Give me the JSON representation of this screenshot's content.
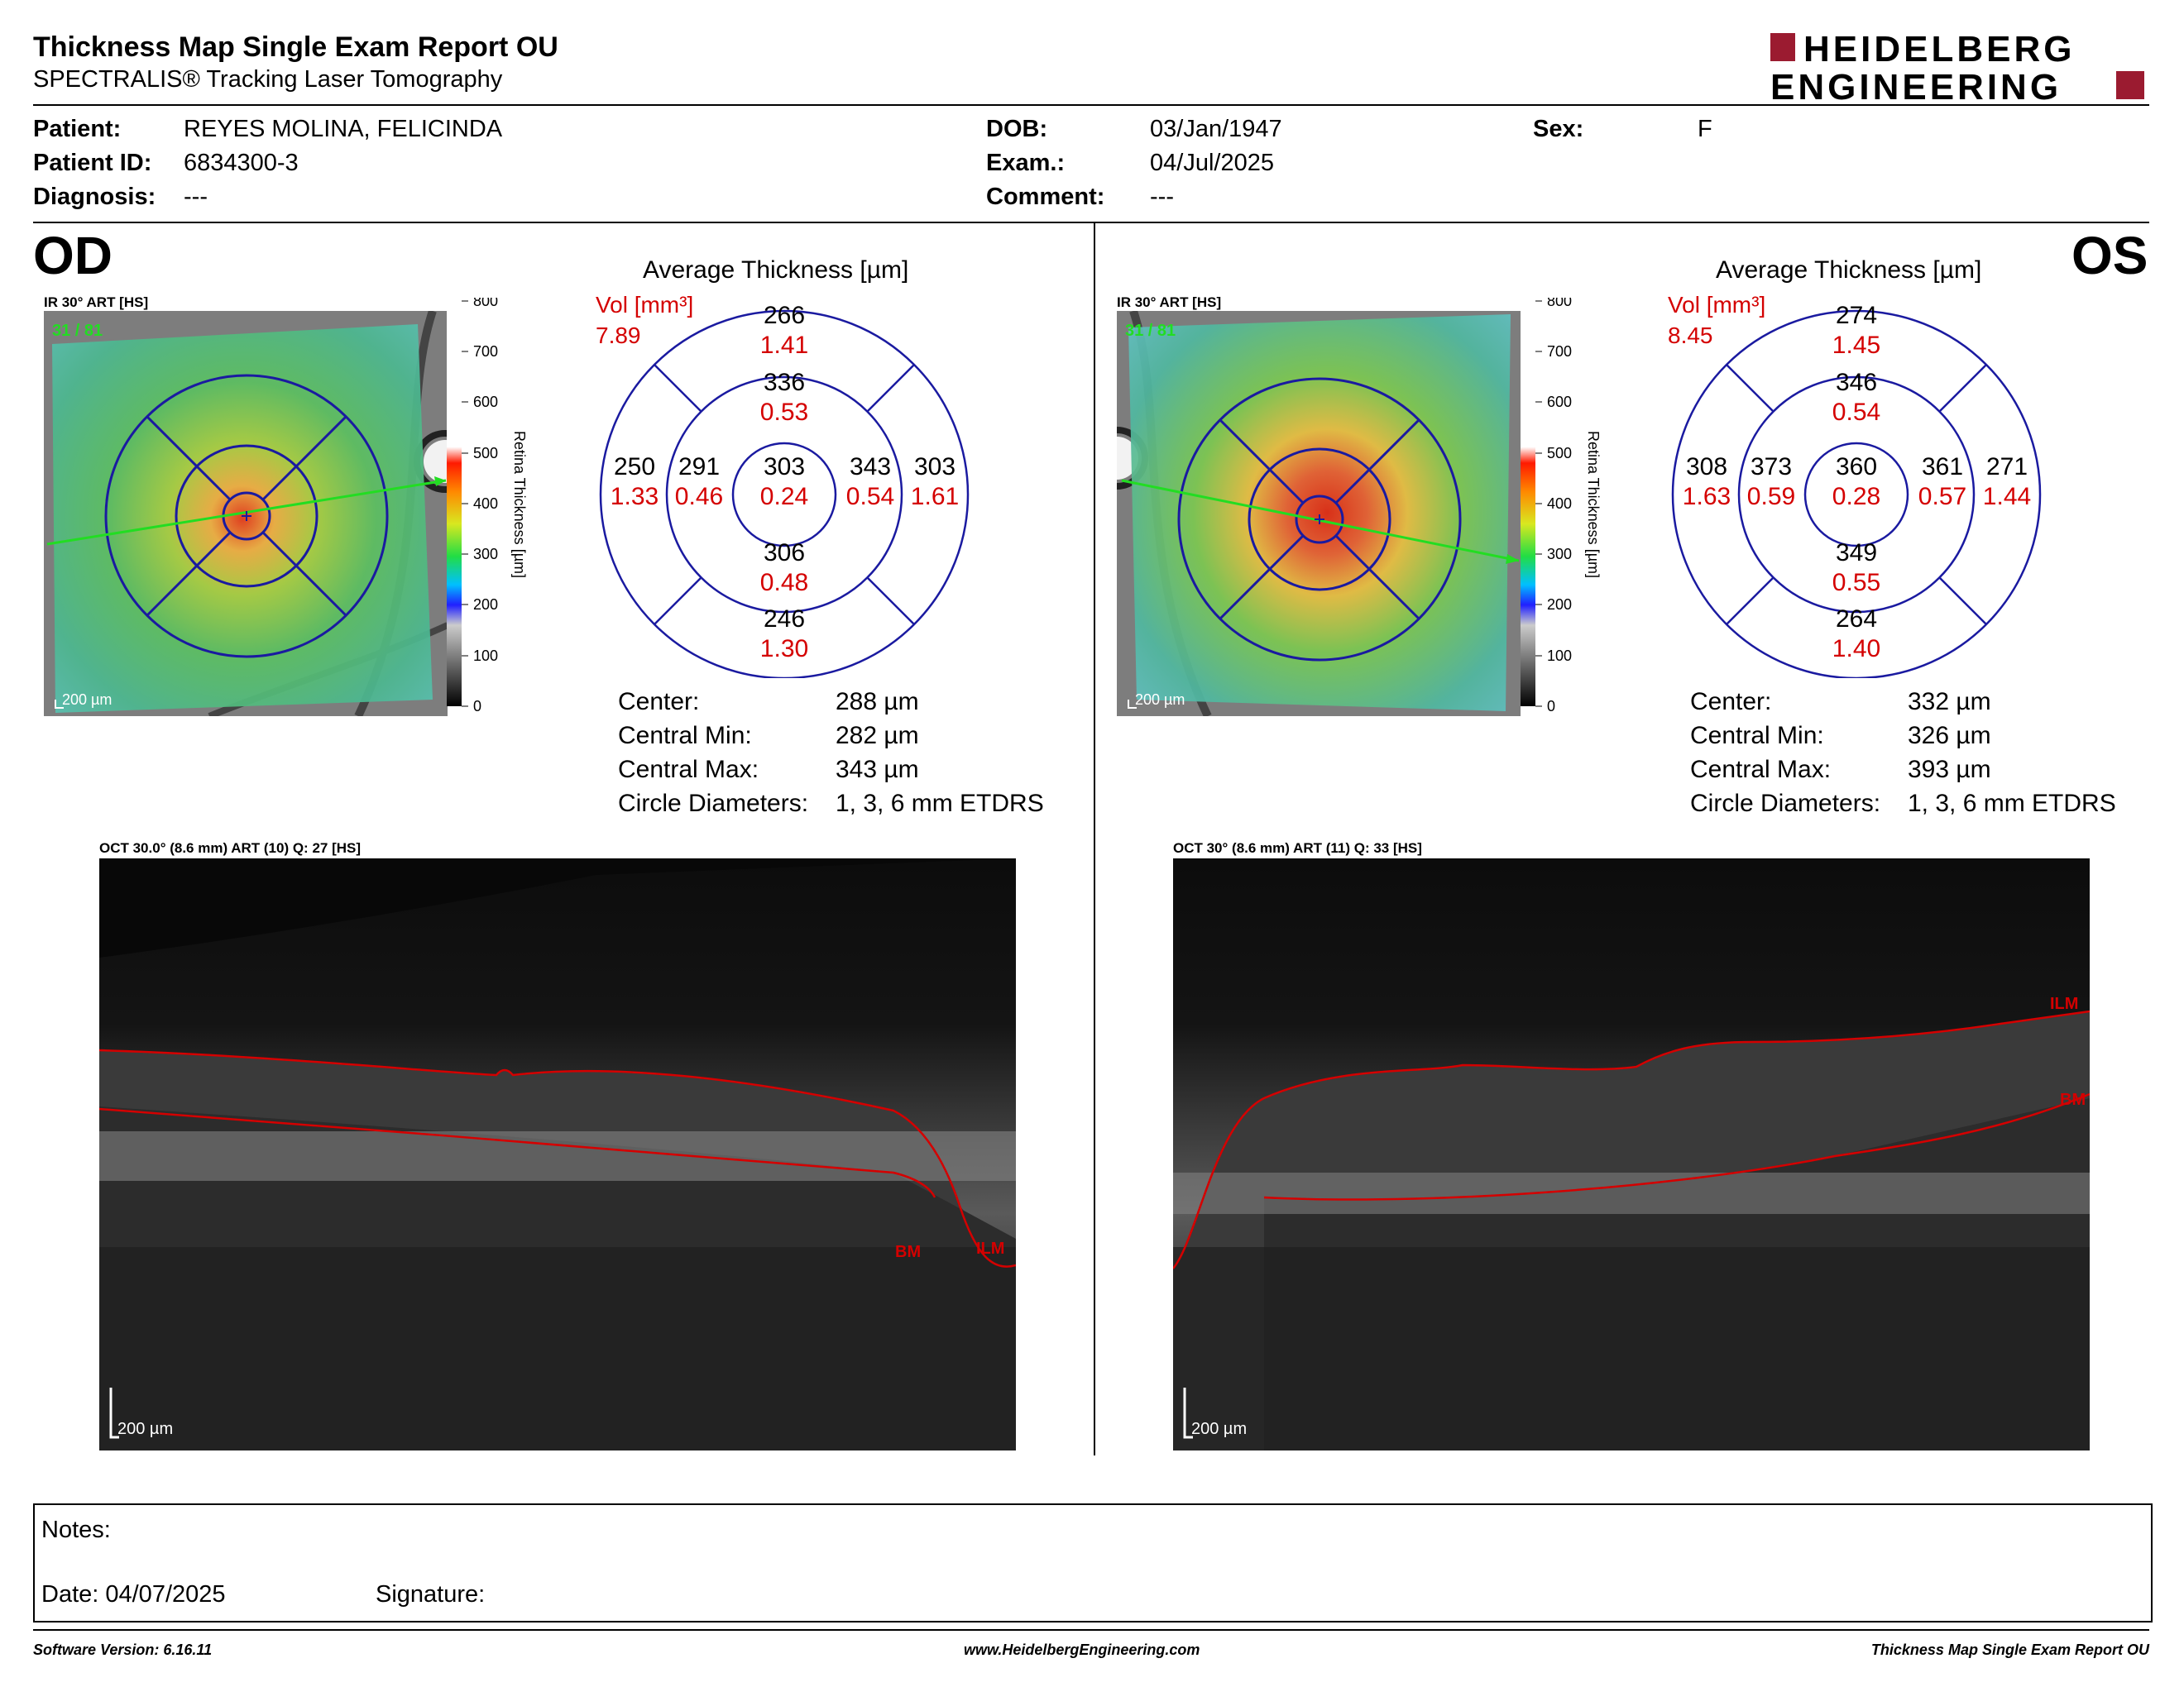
{
  "header": {
    "title": "Thickness Map Single Exam Report OU",
    "subtitle": "SPECTRALIS® Tracking Laser Tomography",
    "logo_line1": "HEIDELBERG",
    "logo_line2": "ENGINEERING"
  },
  "patient": {
    "patient_label": "Patient:",
    "patient_value": "REYES MOLINA, FELICINDA",
    "id_label": "Patient ID:",
    "id_value": "6834300-3",
    "diagnosis_label": "Diagnosis:",
    "diagnosis_value": "---",
    "dob_label": "DOB:",
    "dob_value": "03/Jan/1947",
    "exam_label": "Exam.:",
    "exam_value": "04/Jul/2025",
    "comment_label": "Comment:",
    "comment_value": "---",
    "sex_label": "Sex:",
    "sex_value": "F"
  },
  "colorbar": {
    "ticks": [
      "800",
      "700",
      "600",
      "500",
      "400",
      "300",
      "200",
      "100",
      "0"
    ],
    "label": "Retina Thickness [µm]"
  },
  "od": {
    "eye": "OD",
    "ir_label": "IR 30° ART [HS]",
    "frames": "31 / 81",
    "scale": "200 µm",
    "avg_title": "Average Thickness [µm]",
    "vol_label": "Vol [mm³]",
    "vol_total": "7.89",
    "grid": {
      "outer_sup": {
        "t": "266",
        "v": "1.41"
      },
      "inner_sup": {
        "t": "336",
        "v": "0.53"
      },
      "outer_temp": {
        "t": "250",
        "v": "1.33"
      },
      "inner_temp": {
        "t": "291",
        "v": "0.46"
      },
      "center": {
        "t": "303",
        "v": "0.24"
      },
      "inner_nas": {
        "t": "343",
        "v": "0.54"
      },
      "outer_nas": {
        "t": "303",
        "v": "1.61"
      },
      "inner_inf": {
        "t": "306",
        "v": "0.48"
      },
      "outer_inf": {
        "t": "246",
        "v": "1.30"
      }
    },
    "stats": [
      {
        "label": "Center:",
        "value": "288 µm"
      },
      {
        "label": "Central Min:",
        "value": "282 µm"
      },
      {
        "label": "Central Max:",
        "value": "343 µm"
      },
      {
        "label": "Circle Diameters:",
        "value": "1, 3, 6 mm ETDRS"
      }
    ],
    "oct_label": "OCT 30.0° (8.6 mm) ART (10) Q: 27 [HS]",
    "oct_scale": "200 µm",
    "oct_ilm": "ILM",
    "oct_bm": "BM"
  },
  "os": {
    "eye": "OS",
    "ir_label": "IR 30° ART [HS]",
    "frames": "31 / 81",
    "scale": "200 µm",
    "avg_title": "Average Thickness [µm]",
    "vol_label": "Vol [mm³]",
    "vol_total": "8.45",
    "grid": {
      "outer_sup": {
        "t": "274",
        "v": "1.45"
      },
      "inner_sup": {
        "t": "346",
        "v": "0.54"
      },
      "outer_temp": {
        "t": "308",
        "v": "1.63"
      },
      "inner_temp": {
        "t": "373",
        "v": "0.59"
      },
      "center": {
        "t": "360",
        "v": "0.28"
      },
      "inner_nas": {
        "t": "361",
        "v": "0.57"
      },
      "outer_nas": {
        "t": "271",
        "v": "1.44"
      },
      "inner_inf": {
        "t": "349",
        "v": "0.55"
      },
      "outer_inf": {
        "t": "264",
        "v": "1.40"
      }
    },
    "stats": [
      {
        "label": "Center:",
        "value": "332 µm"
      },
      {
        "label": "Central Min:",
        "value": "326 µm"
      },
      {
        "label": "Central Max:",
        "value": "393 µm"
      },
      {
        "label": "Circle Diameters:",
        "value": "1, 3, 6 mm ETDRS"
      }
    ],
    "oct_label": "OCT 30° (8.6 mm) ART (11) Q: 33 [HS]",
    "oct_scale": "200 µm",
    "oct_ilm": "ILM",
    "oct_bm": "BM"
  },
  "notes": {
    "notes_label": "Notes:",
    "date_label": "Date: 04/07/2025",
    "signature_label": "Signature:"
  },
  "footer": {
    "left": "Software Version: 6.16.11",
    "center": "www.HeidelbergEngineering.com",
    "right": "Thickness Map Single Exam Report OU"
  },
  "colors": {
    "red_value": "#d40000",
    "grid_blue": "#1a1aa0",
    "scan_green": "#22dd22"
  }
}
